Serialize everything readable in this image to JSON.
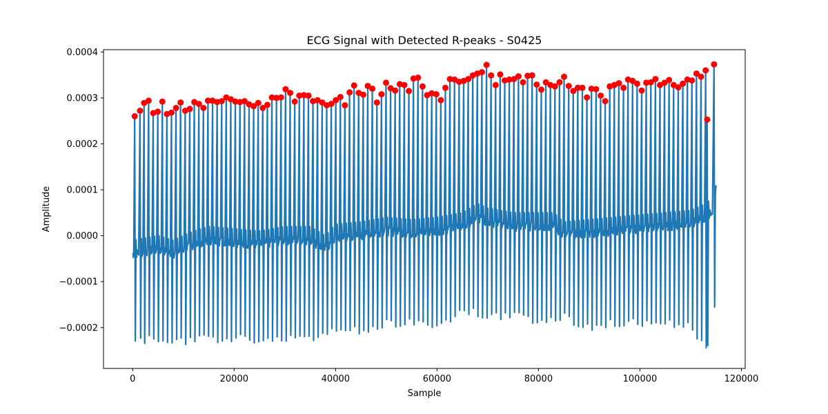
{
  "chart_data": {
    "type": "line",
    "title": "ECG Signal with Detected R-peaks - S0425",
    "xlabel": "Sample",
    "ylabel": "Amplitude",
    "xlim": [
      -5750,
      120750
    ],
    "ylim": [
      -0.000289,
      0.000405
    ],
    "x_ticks": [
      0,
      20000,
      40000,
      60000,
      80000,
      100000,
      120000
    ],
    "x_tick_labels": [
      "0",
      "20000",
      "40000",
      "60000",
      "80000",
      "100000",
      "120000"
    ],
    "y_ticks": [
      -0.0002,
      -0.0001,
      0.0,
      0.0001,
      0.0002,
      0.0003,
      0.0004
    ],
    "y_tick_labels": [
      "−0.0002",
      "−0.0001",
      "0.0000",
      "0.0001",
      "0.0002",
      "0.0003",
      "0.0004"
    ],
    "grid": false,
    "colors": {
      "signal": "#1f77b4",
      "peaks": "#ff0000"
    },
    "series": [
      {
        "kind": "signal-line",
        "description_points_per_beat": "baseline, R-peak, S-trough",
        "x": [
          0,
          115000
        ],
        "baseline_points": {
          "x": [
            0,
            5000,
            8000,
            12000,
            15000,
            20000,
            25000,
            30000,
            35000,
            38000,
            40000,
            45000,
            50000,
            55000,
            60000,
            65000,
            68000,
            70000,
            75000,
            80000,
            83000,
            85000,
            90000,
            95000,
            100000,
            105000,
            110000,
            113000,
            115000
          ],
          "y": [
            -4e-05,
            -3e-05,
            -4e-05,
            -2e-05,
            -1e-05,
            -1.5e-05,
            -2e-05,
            -1e-05,
            -1e-05,
            -3e-05,
            -5e-06,
            0.0,
            1e-05,
            5e-06,
            1e-05,
            2e-05,
            4e-05,
            3e-05,
            2e-05,
            2e-05,
            2e-05,
            0.0,
            5e-06,
            1e-05,
            1.5e-05,
            2e-05,
            2.5e-05,
            4e-05,
            6e-05
          ]
        },
        "trough_points": {
          "x": [
            0,
            5000,
            10000,
            20000,
            25000,
            30000,
            35000,
            40000,
            45000,
            50000,
            55000,
            60000,
            65000,
            70000,
            75000,
            80000,
            85000,
            90000,
            95000,
            100000,
            105000,
            110000,
            113000,
            115000
          ],
          "y": [
            -0.00023,
            -0.000225,
            -0.00023,
            -0.00022,
            -0.000235,
            -0.00022,
            -0.00022,
            -0.00021,
            -0.000205,
            -0.00019,
            -0.00019,
            -0.000195,
            -0.000165,
            -0.00017,
            -0.000175,
            -0.000185,
            -0.000175,
            -0.0002,
            -0.00019,
            -0.00019,
            -0.00019,
            -0.00019,
            -0.000256,
            -0.000135
          ]
        }
      },
      {
        "kind": "r-peaks",
        "x": [
          400,
          1450,
          2250,
          3150,
          4050,
          4950,
          5850,
          6750,
          7650,
          8550,
          9450,
          10350,
          11250,
          12150,
          13050,
          13950,
          14850,
          15750,
          16650,
          17550,
          18450,
          19350,
          20250,
          21150,
          22050,
          22950,
          23850,
          24750,
          25650,
          26550,
          27450,
          28350,
          29250,
          30150,
          31050,
          31950,
          32850,
          33750,
          34650,
          35550,
          36450,
          37350,
          38250,
          39150,
          40050,
          40950,
          41850,
          42750,
          43650,
          44550,
          45450,
          46350,
          47250,
          48150,
          49050,
          49950,
          50850,
          51750,
          52650,
          53550,
          54450,
          55350,
          56250,
          57150,
          58050,
          58950,
          59850,
          60750,
          61650,
          62550,
          63450,
          64350,
          65250,
          66150,
          67050,
          67950,
          68850,
          69750,
          70650,
          71550,
          72450,
          73350,
          74250,
          75150,
          76050,
          76950,
          77850,
          78750,
          79650,
          80550,
          81450,
          82350,
          83250,
          84150,
          85050,
          85950,
          86850,
          87750,
          88650,
          89550,
          90450,
          91350,
          92250,
          93150,
          94050,
          94950,
          95850,
          96750,
          97650,
          98550,
          99450,
          100350,
          101250,
          102150,
          103050,
          103950,
          104850,
          105750,
          106650,
          107550,
          108450,
          109350,
          110250,
          111150,
          112050,
          112950,
          113250,
          114600
        ],
        "y": [
          0.00026,
          0.000272,
          0.000289,
          0.000294,
          0.000267,
          0.00027,
          0.000292,
          0.000265,
          0.000268,
          0.000278,
          0.00029,
          0.000272,
          0.000276,
          0.000291,
          0.000287,
          0.000278,
          0.000294,
          0.000294,
          0.000291,
          0.000293,
          0.000301,
          0.000297,
          0.000292,
          0.000291,
          0.000293,
          0.000286,
          0.000282,
          0.000289,
          0.000278,
          0.000285,
          0.000301,
          0.0003,
          0.000301,
          0.000319,
          0.000311,
          0.000292,
          0.000305,
          0.000306,
          0.000305,
          0.000293,
          0.000295,
          0.00029,
          0.000284,
          0.000287,
          0.000295,
          0.000302,
          0.000284,
          0.000312,
          0.000327,
          0.000311,
          0.000307,
          0.000326,
          0.00032,
          0.00029,
          0.000308,
          0.000333,
          0.000321,
          0.000316,
          0.00033,
          0.000328,
          0.000315,
          0.000342,
          0.000344,
          0.000325,
          0.000306,
          0.00031,
          0.000308,
          0.000295,
          0.000322,
          0.000341,
          0.00034,
          0.000335,
          0.000337,
          0.000341,
          0.000349,
          0.000353,
          0.000356,
          0.000372,
          0.000349,
          0.000328,
          0.000351,
          0.000338,
          0.00034,
          0.000341,
          0.000347,
          0.000334,
          0.000348,
          0.000349,
          0.000329,
          0.000318,
          0.000334,
          0.000328,
          0.000325,
          0.000334,
          0.000346,
          0.000326,
          0.000315,
          0.000322,
          0.000322,
          0.000301,
          0.00032,
          0.000319,
          0.000305,
          0.000293,
          0.000325,
          0.000328,
          0.000332,
          0.000322,
          0.00034,
          0.000337,
          0.000331,
          0.000316,
          0.000333,
          0.000334,
          0.000341,
          0.000328,
          0.000333,
          0.000339,
          0.000328,
          0.000323,
          0.000331,
          0.00034,
          0.000338,
          0.000353,
          0.000346,
          0.00036,
          0.000253,
          0.000373
        ]
      }
    ]
  }
}
